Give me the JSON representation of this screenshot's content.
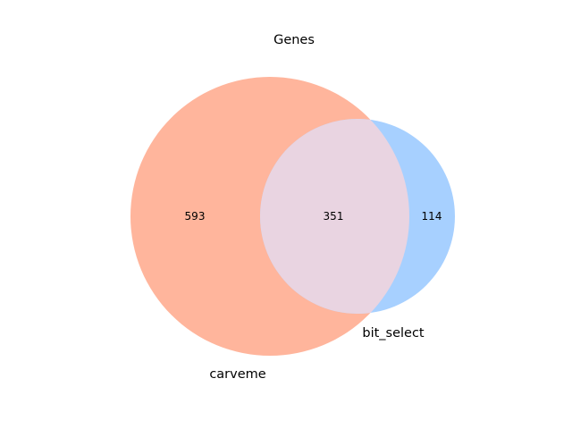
{
  "title": "Genes",
  "venn": {
    "sets": [
      {
        "name": "carveme",
        "color": "#ffb59c"
      },
      {
        "name": "bit_select",
        "color": "#a7d0ff"
      }
    ],
    "intersection_color": "#e9d4e1",
    "regions": {
      "only_a": "593",
      "both": "351",
      "only_b": "114"
    }
  }
}
